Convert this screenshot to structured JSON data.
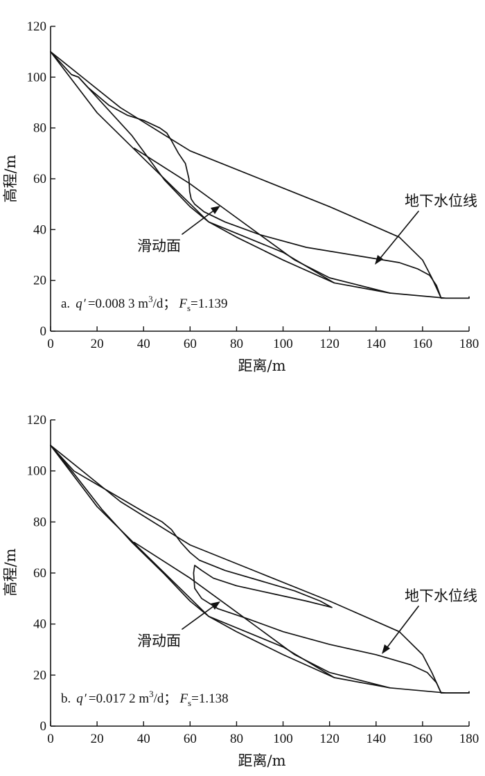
{
  "chart_data": [
    {
      "id": "a",
      "type": "line",
      "caption": {
        "prefix": "a.",
        "q_symbol": "q",
        "q_prime": "′",
        "q_value": "=0.008 3 m",
        "q_sup": "3",
        "q_unit": "/d；",
        "f_symbol": "F",
        "f_sub": "s",
        "f_value": "=1.139"
      },
      "xlabel": "距离/m",
      "ylabel": "高程/m",
      "xlim": [
        0,
        180
      ],
      "ylim": [
        0,
        120
      ],
      "xticks": [
        "0",
        "20",
        "40",
        "60",
        "80",
        "100",
        "120",
        "140",
        "160",
        "180"
      ],
      "yticks": [
        "0",
        "20",
        "40",
        "60",
        "80",
        "100",
        "120"
      ],
      "annotations": {
        "groundwater_label": "地下水位线",
        "slip_label": "滑动面"
      },
      "series": [
        {
          "role": "slope_surface",
          "points": [
            [
              0,
              110
            ],
            [
              30,
              88
            ],
            [
              60,
              71
            ],
            [
              90,
              60
            ],
            [
              120,
              49
            ],
            [
              150,
              37
            ],
            [
              160,
              28
            ],
            [
              164,
              21
            ],
            [
              168,
              13
            ],
            [
              173,
              13
            ],
            [
              180,
              13
            ],
            [
              180,
              13.5
            ]
          ]
        },
        {
          "role": "slope_base",
          "points": [
            [
              0,
              110
            ],
            [
              20,
              86
            ],
            [
              40,
              68
            ],
            [
              68,
              43
            ],
            [
              100,
              31
            ],
            [
              122,
              19
            ],
            [
              146,
              15
            ],
            [
              170,
              13
            ],
            [
              180,
              13
            ]
          ]
        },
        {
          "role": "groundwater_table",
          "points": [
            [
              0,
              110
            ],
            [
              9,
              101
            ],
            [
              12,
              100
            ],
            [
              16,
              96
            ],
            [
              25,
              89
            ],
            [
              33,
              85
            ],
            [
              40,
              83
            ],
            [
              47,
              80
            ],
            [
              50,
              78
            ],
            [
              52,
              75
            ],
            [
              55,
              70
            ],
            [
              58,
              66
            ],
            [
              59.5,
              60
            ],
            [
              59.8,
              55
            ],
            [
              60.5,
              52
            ],
            [
              62,
              50
            ],
            [
              66,
              47
            ],
            [
              75,
              43
            ],
            [
              90,
              38
            ],
            [
              110,
              33
            ],
            [
              130,
              30
            ],
            [
              150,
              27
            ],
            [
              158,
              24.5
            ],
            [
              163,
              22
            ],
            [
              166,
              18
            ],
            [
              168,
              13
            ]
          ]
        },
        {
          "role": "slip_surface",
          "points": [
            [
              36,
              72
            ],
            [
              60,
              58
            ],
            [
              75,
              48
            ],
            [
              90,
              38
            ],
            [
              105,
              28
            ],
            [
              120,
              21
            ],
            [
              146,
              15
            ]
          ]
        },
        {
          "role": "inner_contour",
          "points": [
            [
              9,
              101
            ],
            [
              12,
              100
            ],
            [
              20,
              92
            ],
            [
              35,
              77
            ],
            [
              49,
              59.5
            ],
            [
              60,
              49
            ],
            [
              68,
              43
            ],
            [
              80,
              37
            ],
            [
              100,
              28
            ],
            [
              122,
              19
            ]
          ]
        }
      ]
    },
    {
      "id": "b",
      "type": "line",
      "caption": {
        "prefix": "b.",
        "q_symbol": "q",
        "q_prime": "′",
        "q_value": "=0.017 2 m",
        "q_sup": "3",
        "q_unit": "/d；",
        "f_symbol": "F",
        "f_sub": "s",
        "f_value": "=1.138"
      },
      "xlabel": "距离/m",
      "ylabel": "高程/m",
      "xlim": [
        0,
        180
      ],
      "ylim": [
        0,
        120
      ],
      "xticks": [
        "0",
        "20",
        "40",
        "60",
        "80",
        "100",
        "120",
        "140",
        "160",
        "180"
      ],
      "yticks": [
        "0",
        "20",
        "40",
        "60",
        "80",
        "100",
        "120"
      ],
      "annotations": {
        "groundwater_label": "地下水位线",
        "slip_label": "滑动面"
      },
      "series": [
        {
          "role": "slope_surface",
          "points": [
            [
              0,
              110
            ],
            [
              30,
              88
            ],
            [
              60,
              71
            ],
            [
              90,
              60
            ],
            [
              120,
              49
            ],
            [
              150,
              37
            ],
            [
              160,
              28
            ],
            [
              164,
              21
            ],
            [
              168,
              13
            ],
            [
              173,
              13
            ],
            [
              180,
              13
            ],
            [
              180,
              13.5
            ]
          ]
        },
        {
          "role": "slope_base",
          "points": [
            [
              0,
              110
            ],
            [
              20,
              86
            ],
            [
              40,
              68
            ],
            [
              68,
              43
            ],
            [
              100,
              31
            ],
            [
              122,
              19
            ],
            [
              146,
              15
            ],
            [
              170,
              13
            ],
            [
              180,
              13
            ]
          ]
        },
        {
          "role": "groundwater_table",
          "points": [
            [
              0,
              110
            ],
            [
              10,
              100
            ],
            [
              25,
              92
            ],
            [
              40,
              84
            ],
            [
              48,
              80
            ],
            [
              52,
              77
            ],
            [
              56,
              72
            ],
            [
              60,
              68
            ],
            [
              64,
              65
            ],
            [
              75,
              61
            ],
            [
              90,
              57
            ],
            [
              105,
              53
            ],
            [
              116,
              49
            ],
            [
              121,
              46.5
            ],
            [
              110,
              49
            ],
            [
              95,
              52
            ],
            [
              80,
              55
            ],
            [
              70,
              58
            ],
            [
              65,
              61
            ],
            [
              62,
              63
            ],
            [
              61.5,
              60
            ],
            [
              62,
              54
            ],
            [
              65,
              50
            ],
            [
              72,
              46
            ],
            [
              85,
              42
            ],
            [
              100,
              37
            ],
            [
              120,
              32
            ],
            [
              140,
              28
            ],
            [
              155,
              24
            ],
            [
              162,
              21
            ],
            [
              166,
              17
            ],
            [
              168,
              13
            ]
          ]
        },
        {
          "role": "slip_surface",
          "points": [
            [
              36,
              72
            ],
            [
              60,
              58
            ],
            [
              75,
              48
            ],
            [
              90,
              38
            ],
            [
              105,
              28
            ],
            [
              120,
              21
            ],
            [
              146,
              15
            ]
          ]
        },
        {
          "role": "inner_contour",
          "points": [
            [
              0,
              110
            ],
            [
              10,
              99
            ],
            [
              22,
              85
            ],
            [
              35,
              72
            ],
            [
              49,
              59.5
            ],
            [
              60,
              49
            ],
            [
              68,
              43
            ],
            [
              80,
              37
            ],
            [
              100,
              28
            ],
            [
              122,
              19
            ]
          ]
        }
      ]
    }
  ]
}
